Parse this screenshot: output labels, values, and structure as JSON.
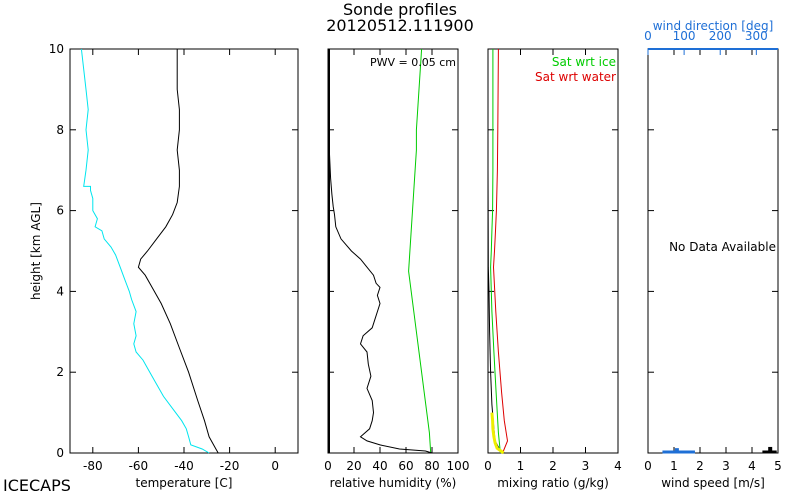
{
  "title": "Sonde profiles",
  "subtitle": "20120512.111900",
  "footer_label": "ICECAPS",
  "colors": {
    "temperature": "#000000",
    "dewpoint": "#00e5ee",
    "rh": "#000000",
    "sat_ice": "#00cc00",
    "sat_water": "#dd0000",
    "mixing_ratio": "#000000",
    "mixing_ratio_low": "#eeee00",
    "wind_axis": "#1e6fd6",
    "wind_speed_tick": "#000000"
  },
  "chart_data": [
    {
      "type": "line",
      "panel": "temperature",
      "xlabel": "temperature [C]",
      "ylabel": "height [km AGL]",
      "xlim": [
        -90,
        10
      ],
      "ylim": [
        0,
        10
      ],
      "xticks": [
        -80,
        -60,
        -40,
        -20,
        0
      ],
      "yticks": [
        0,
        2,
        4,
        6,
        8,
        10
      ],
      "series": [
        {
          "key": "temperature",
          "points": [
            [
              -25,
              0.0
            ],
            [
              -26,
              0.1
            ],
            [
              -29,
              0.4
            ],
            [
              -31,
              0.8
            ],
            [
              -34,
              1.3
            ],
            [
              -38,
              2.0
            ],
            [
              -42,
              2.6
            ],
            [
              -46,
              3.2
            ],
            [
              -50,
              3.7
            ],
            [
              -54,
              4.1
            ],
            [
              -57,
              4.4
            ],
            [
              -60,
              4.6
            ],
            [
              -59,
              4.8
            ],
            [
              -56,
              5.0
            ],
            [
              -52,
              5.3
            ],
            [
              -48,
              5.6
            ],
            [
              -45,
              5.9
            ],
            [
              -43,
              6.2
            ],
            [
              -42,
              6.6
            ],
            [
              -42,
              7.0
            ],
            [
              -43,
              7.5
            ],
            [
              -42,
              8.0
            ],
            [
              -42,
              8.5
            ],
            [
              -43,
              9.0
            ],
            [
              -43,
              9.5
            ],
            [
              -43,
              10.0
            ]
          ]
        },
        {
          "key": "dewpoint",
          "points": [
            [
              -29,
              0.0
            ],
            [
              -32,
              0.1
            ],
            [
              -37,
              0.2
            ],
            [
              -38,
              0.4
            ],
            [
              -39,
              0.6
            ],
            [
              -41,
              0.8
            ],
            [
              -45,
              1.1
            ],
            [
              -49,
              1.4
            ],
            [
              -52,
              1.7
            ],
            [
              -55,
              2.0
            ],
            [
              -58,
              2.3
            ],
            [
              -61,
              2.5
            ],
            [
              -62,
              2.7
            ],
            [
              -61,
              2.9
            ],
            [
              -62,
              3.2
            ],
            [
              -61,
              3.5
            ],
            [
              -63,
              3.8
            ],
            [
              -64,
              4.0
            ],
            [
              -66,
              4.3
            ],
            [
              -68,
              4.6
            ],
            [
              -70,
              4.9
            ],
            [
              -72,
              5.1
            ],
            [
              -75,
              5.3
            ],
            [
              -76,
              5.5
            ],
            [
              -79,
              5.6
            ],
            [
              -78,
              5.8
            ],
            [
              -80,
              6.0
            ],
            [
              -80,
              6.3
            ],
            [
              -81,
              6.5
            ],
            [
              -81,
              6.6
            ],
            [
              -84,
              6.6
            ],
            [
              -83,
              7.0
            ],
            [
              -82,
              7.5
            ],
            [
              -83,
              8.0
            ],
            [
              -82,
              8.5
            ],
            [
              -83,
              9.0
            ],
            [
              -84,
              9.5
            ],
            [
              -85,
              10.0
            ]
          ]
        }
      ]
    },
    {
      "type": "line",
      "panel": "relative_humidity",
      "xlabel": "relative humidity (%)",
      "xlim": [
        0,
        100
      ],
      "ylim": [
        0,
        10
      ],
      "xticks": [
        0,
        20,
        40,
        60,
        80,
        100
      ],
      "annotation": "PWV = 0.05 cm",
      "series": [
        {
          "key": "rh",
          "points": [
            [
              80,
              0.0
            ],
            [
              75,
              0.05
            ],
            [
              55,
              0.1
            ],
            [
              40,
              0.2
            ],
            [
              30,
              0.3
            ],
            [
              25,
              0.4
            ],
            [
              32,
              0.6
            ],
            [
              34,
              0.8
            ],
            [
              35,
              1.0
            ],
            [
              34,
              1.3
            ],
            [
              30,
              1.6
            ],
            [
              33,
              1.9
            ],
            [
              31,
              2.2
            ],
            [
              30,
              2.5
            ],
            [
              25,
              2.7
            ],
            [
              27,
              2.9
            ],
            [
              34,
              3.1
            ],
            [
              36,
              3.3
            ],
            [
              38,
              3.5
            ],
            [
              40,
              3.7
            ],
            [
              38,
              3.9
            ],
            [
              40,
              4.1
            ],
            [
              37,
              4.2
            ],
            [
              35,
              4.4
            ],
            [
              30,
              4.6
            ],
            [
              25,
              4.8
            ],
            [
              18,
              5.0
            ],
            [
              10,
              5.3
            ],
            [
              6,
              5.6
            ],
            [
              5,
              5.9
            ],
            [
              4,
              6.1
            ],
            [
              3,
              6.4
            ],
            [
              2,
              6.8
            ],
            [
              1,
              7.5
            ],
            [
              0,
              8.5
            ],
            [
              0,
              10.0
            ]
          ]
        },
        {
          "key": "rh_ice",
          "points": [
            [
              79,
              0.0
            ],
            [
              78,
              0.5
            ],
            [
              76,
              1.0
            ],
            [
              74,
              1.5
            ],
            [
              72,
              2.0
            ],
            [
              70,
              2.5
            ],
            [
              68,
              3.0
            ],
            [
              66,
              3.5
            ],
            [
              64,
              4.0
            ],
            [
              62,
              4.5
            ],
            [
              63,
              5.0
            ],
            [
              64,
              5.5
            ],
            [
              65,
              6.0
            ],
            [
              66,
              6.5
            ],
            [
              67,
              7.0
            ],
            [
              68,
              7.5
            ],
            [
              68,
              8.0
            ],
            [
              69,
              8.5
            ],
            [
              70,
              9.0
            ],
            [
              71,
              9.5
            ],
            [
              72,
              10.0
            ]
          ]
        }
      ]
    },
    {
      "type": "line",
      "panel": "mixing_ratio",
      "xlabel": "mixing ratio (g/kg)",
      "xlim": [
        0,
        4
      ],
      "ylim": [
        0,
        10
      ],
      "xticks": [
        0,
        1,
        2,
        3,
        4
      ],
      "legend": [
        {
          "label": "Sat wrt ice",
          "key": "sat_ice"
        },
        {
          "label": "Sat wrt water",
          "key": "sat_water"
        }
      ],
      "series": [
        {
          "key": "sat_ice",
          "points": [
            [
              0.38,
              0.0
            ],
            [
              0.32,
              0.5
            ],
            [
              0.25,
              1.5
            ],
            [
              0.18,
              2.5
            ],
            [
              0.12,
              3.5
            ],
            [
              0.08,
              4.6
            ],
            [
              0.1,
              5.0
            ],
            [
              0.12,
              5.5
            ],
            [
              0.14,
              6.0
            ],
            [
              0.15,
              7.0
            ],
            [
              0.15,
              8.0
            ],
            [
              0.15,
              9.0
            ],
            [
              0.15,
              10.0
            ]
          ]
        },
        {
          "key": "sat_water",
          "points": [
            [
              0.45,
              0.0
            ],
            [
              0.6,
              0.3
            ],
            [
              0.5,
              0.8
            ],
            [
              0.42,
              1.5
            ],
            [
              0.32,
              2.5
            ],
            [
              0.24,
              3.5
            ],
            [
              0.17,
              4.6
            ],
            [
              0.2,
              5.0
            ],
            [
              0.23,
              5.5
            ],
            [
              0.26,
              6.0
            ],
            [
              0.29,
              7.0
            ],
            [
              0.3,
              8.0
            ],
            [
              0.31,
              9.0
            ],
            [
              0.32,
              10.0
            ]
          ]
        },
        {
          "key": "mixing_ratio",
          "points": [
            [
              0.5,
              0.0
            ],
            [
              0.35,
              0.1
            ],
            [
              0.22,
              0.3
            ],
            [
              0.18,
              0.6
            ],
            [
              0.12,
              1.2
            ],
            [
              0.08,
              2.0
            ],
            [
              0.05,
              3.0
            ],
            [
              0.03,
              4.0
            ],
            [
              0.01,
              4.6
            ],
            [
              0.005,
              5.5
            ],
            [
              0.0,
              7.0
            ],
            [
              0.0,
              10.0
            ]
          ]
        },
        {
          "key": "mixing_ratio_low",
          "points": [
            [
              0.48,
              0.0
            ],
            [
              0.4,
              0.05
            ],
            [
              0.28,
              0.12
            ],
            [
              0.22,
              0.25
            ],
            [
              0.18,
              0.4
            ],
            [
              0.15,
              0.6
            ],
            [
              0.14,
              0.8
            ],
            [
              0.12,
              1.0
            ]
          ]
        }
      ]
    },
    {
      "type": "bar",
      "panel": "wind",
      "xlabel": "wind speed [m/s]",
      "top_axis_label": "wind direction [deg]",
      "xlim": [
        0,
        5
      ],
      "top_xlim": [
        0,
        360
      ],
      "ylim": [
        0,
        10
      ],
      "xticks": [
        0,
        1,
        2,
        3,
        4,
        5
      ],
      "top_xticks": [
        0,
        100,
        200,
        300
      ],
      "message": "No Data Available",
      "wind_speed_bins": [
        [
          4.7,
          0.15
        ]
      ],
      "wind_direction_bins": [
        [
          80,
          0.12
        ],
        [
          60,
          0.04
        ],
        [
          100,
          0.04
        ]
      ]
    }
  ]
}
